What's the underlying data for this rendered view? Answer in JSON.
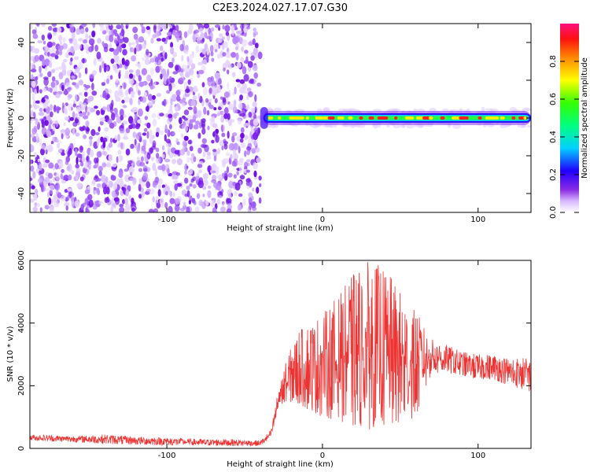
{
  "title": "C2E3.2024.027.17.07.G30",
  "colors": {
    "snr_line": "#ee3333",
    "axis": "#000000",
    "noise_purple": "#7a1cf0"
  },
  "chart_data": [
    {
      "type": "heatmap",
      "xlabel": "Height of straight line (km)",
      "ylabel": "Frequency (Hz)",
      "xlim": [
        -188,
        134
      ],
      "ylim": [
        -50,
        50
      ],
      "xticks": [
        -100,
        0,
        100
      ],
      "yticks": [
        -40,
        -20,
        0,
        20,
        40
      ],
      "colorbar": {
        "label": "Normalized spectral amplitude",
        "range": [
          0.0,
          1.0
        ],
        "ticks": [
          "0.0",
          "0.2",
          "0.4",
          "0.6",
          "0.8"
        ],
        "colormap": "rainbow"
      },
      "noise_region_x": [
        -188,
        -40
      ],
      "signal_band": {
        "x_start": -38,
        "x_end": 134,
        "center_freq_hz": 0
      }
    },
    {
      "type": "line",
      "xlabel": "Height of straight line (km)",
      "ylabel": "SNR (10 * v/v)",
      "xlim": [
        -188,
        134
      ],
      "ylim": [
        0,
        6000
      ],
      "xticks": [
        -100,
        0,
        100
      ],
      "yticks": [
        0,
        2000,
        4000,
        6000
      ],
      "series": [
        {
          "x": [
            -188,
            -160,
            -140,
            -120,
            -100,
            -80,
            -60,
            -40,
            -33,
            -28,
            -22,
            -15,
            -8,
            0,
            10,
            20,
            30,
            40,
            50,
            60,
            70,
            80,
            90,
            100,
            110,
            120,
            134
          ],
          "min": [
            250,
            200,
            150,
            120,
            100,
            100,
            80,
            80,
            300,
            1300,
            1500,
            1400,
            1200,
            1000,
            900,
            700,
            600,
            700,
            800,
            1000,
            2400,
            2400,
            2300,
            2200,
            2200,
            2000,
            1800
          ],
          "max": [
            450,
            400,
            450,
            380,
            350,
            300,
            300,
            250,
            600,
            2000,
            3000,
            3800,
            4000,
            4300,
            4900,
            5600,
            6000,
            5800,
            5000,
            4400,
            3500,
            3300,
            3100,
            3000,
            3000,
            2900,
            2900
          ]
        }
      ]
    }
  ]
}
